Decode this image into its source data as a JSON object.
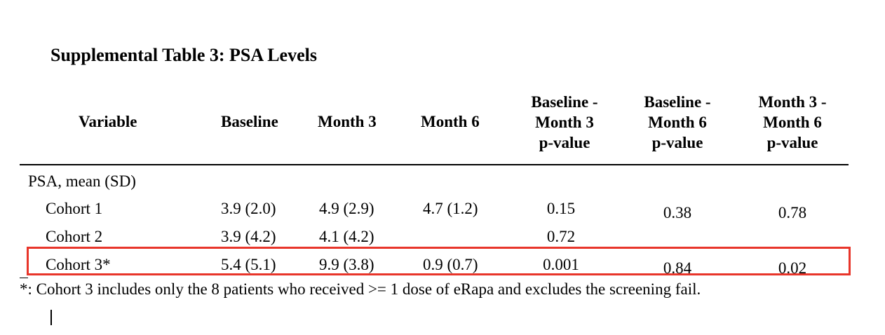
{
  "title": "Supplemental Table 3: PSA Levels",
  "headers": {
    "variable": "Variable",
    "baseline": "Baseline",
    "month3": "Month 3",
    "month6": "Month 6",
    "p_b_m3": [
      "Baseline -",
      "Month 3",
      "p-value"
    ],
    "p_b_m6": [
      "Baseline -",
      "Month 6",
      "p-value"
    ],
    "p_m3_m6": [
      "Month 3 -",
      "Month 6",
      "p-value"
    ]
  },
  "section_label": "PSA, mean (SD)",
  "rows": [
    {
      "label": "Cohort 1",
      "baseline": "3.9 (2.0)",
      "month3": "4.9 (2.9)",
      "month6": "4.7 (1.2)",
      "p_b_m3": "0.15",
      "p_b_m6": "0.38",
      "p_m3_m6": "0.78"
    },
    {
      "label": "Cohort 2",
      "baseline": "3.9 (4.2)",
      "month3": "4.1 (4.2)",
      "month6": "",
      "p_b_m3": "0.72",
      "p_b_m6": "",
      "p_m3_m6": ""
    },
    {
      "label": "Cohort 3*",
      "baseline": "5.4 (5.1)",
      "month3": "9.9 (3.8)",
      "month6": "0.9 (0.7)",
      "p_b_m3": "0.001",
      "p_b_m6": "0.84",
      "p_m3_m6": "0.02"
    }
  ],
  "footnote": "*: Cohort 3 includes only the 8 patients who received >= 1 dose of eRapa and excludes the screening fail.",
  "highlight_color": "#e8352a"
}
